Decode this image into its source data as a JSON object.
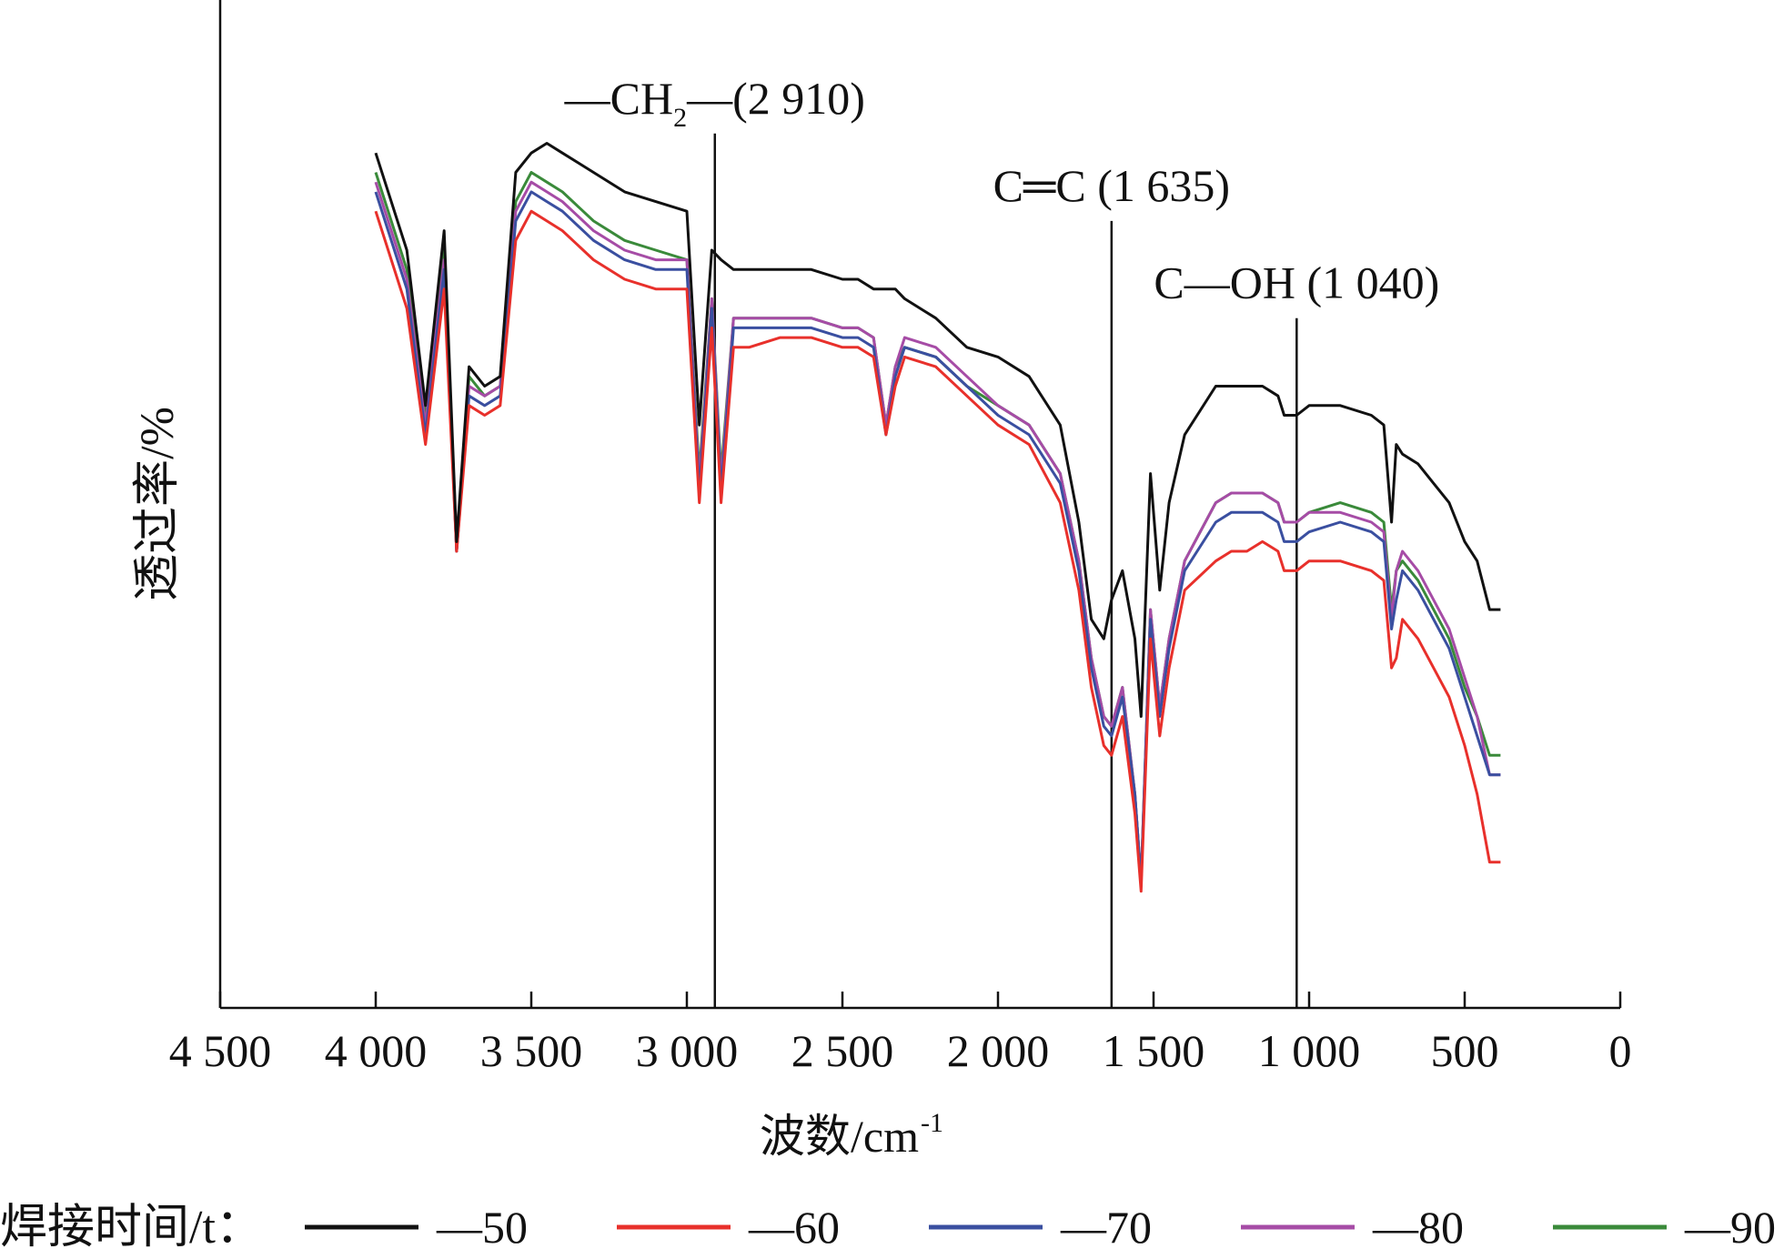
{
  "chart_data": {
    "type": "line",
    "title": "",
    "xlabel": "波数/cm",
    "xlabel_sup": "-1",
    "ylabel": "透过率/%",
    "xlim": [
      4500,
      0
    ],
    "xticks": [
      4500,
      4000,
      3500,
      3000,
      2500,
      2000,
      1500,
      1000,
      500,
      0
    ],
    "xtick_labels": [
      "4 500",
      "4 000",
      "3 500",
      "3 000",
      "2 500",
      "2 000",
      "1 500",
      "1 000",
      "500",
      "0"
    ],
    "ylim": [
      0,
      100
    ],
    "grid": false,
    "legend_title": "焊接时间/t：",
    "legend_position": "bottom",
    "annotations": [
      {
        "pre": "—CH",
        "sub": "2",
        "post": "—(2 910)",
        "x": 2910,
        "y_top": 90
      },
      {
        "pre": "C═C (1 635)",
        "sub": "",
        "post": "",
        "x": 1635,
        "y_top": 81
      },
      {
        "pre": "C—OH (1 040)",
        "sub": "",
        "post": "",
        "x": 1040,
        "y_top": 71
      }
    ],
    "x": [
      4000,
      3900,
      3840,
      3780,
      3740,
      3700,
      3650,
      3600,
      3550,
      3500,
      3450,
      3400,
      3300,
      3200,
      3100,
      3000,
      2960,
      2920,
      2890,
      2850,
      2800,
      2700,
      2600,
      2500,
      2450,
      2400,
      2360,
      2330,
      2300,
      2200,
      2100,
      2000,
      1900,
      1800,
      1740,
      1700,
      1660,
      1635,
      1600,
      1560,
      1540,
      1510,
      1480,
      1450,
      1400,
      1300,
      1250,
      1200,
      1150,
      1100,
      1080,
      1040,
      1000,
      900,
      800,
      760,
      735,
      720,
      700,
      650,
      600,
      550,
      500,
      460,
      420
    ],
    "series": [
      {
        "name": "—50",
        "color": "#111111",
        "values": [
          88,
          78,
          62,
          80,
          48,
          66,
          64,
          65,
          86,
          88,
          89,
          88,
          86,
          84,
          83,
          82,
          60,
          78,
          77,
          76,
          76,
          76,
          76,
          75,
          75,
          74,
          74,
          74,
          73,
          71,
          68,
          67,
          65,
          60,
          50,
          40,
          38,
          42,
          45,
          38,
          30,
          55,
          43,
          52,
          59,
          64,
          64,
          64,
          64,
          63,
          61,
          61,
          62,
          62,
          61,
          60,
          50,
          58,
          57,
          56,
          54,
          52,
          48,
          46,
          41
        ]
      },
      {
        "name": "—60",
        "color": "#e8302b",
        "values": [
          82,
          72,
          58,
          74,
          47,
          62,
          61,
          62,
          79,
          82,
          81,
          80,
          77,
          75,
          74,
          74,
          52,
          70,
          52,
          68,
          68,
          69,
          69,
          68,
          68,
          67,
          59,
          64,
          67,
          66,
          63,
          60,
          58,
          52,
          43,
          33,
          27,
          26,
          30,
          20,
          12,
          38,
          28,
          35,
          43,
          46,
          47,
          47,
          48,
          47,
          45,
          45,
          46,
          46,
          45,
          44,
          35,
          36,
          40,
          38,
          35,
          32,
          27,
          22,
          15
        ]
      },
      {
        "name": "—70",
        "color": "#3a4fa0",
        "values": [
          84,
          74,
          59,
          76,
          47,
          63,
          62,
          63,
          81,
          84,
          83,
          82,
          79,
          77,
          76,
          76,
          53,
          72,
          53,
          70,
          70,
          70,
          70,
          69,
          69,
          68,
          59,
          65,
          68,
          67,
          64,
          61,
          59,
          54,
          45,
          35,
          29,
          28,
          32,
          22,
          13,
          40,
          30,
          37,
          45,
          50,
          51,
          51,
          51,
          50,
          48,
          48,
          49,
          50,
          49,
          48,
          39,
          42,
          45,
          43,
          40,
          37,
          32,
          28,
          24
        ]
      },
      {
        "name": "—80",
        "color": "#a64ca6",
        "values": [
          85,
          75,
          60,
          77,
          47,
          64,
          63,
          64,
          82,
          85,
          84,
          83,
          80,
          78,
          77,
          77,
          54,
          73,
          54,
          71,
          71,
          71,
          71,
          70,
          70,
          69,
          60,
          66,
          69,
          68,
          65,
          62,
          60,
          55,
          46,
          36,
          30,
          29,
          33,
          22,
          13,
          41,
          31,
          38,
          46,
          52,
          53,
          53,
          53,
          52,
          50,
          50,
          51,
          51,
          50,
          49,
          40,
          45,
          47,
          45,
          42,
          39,
          34,
          30,
          24
        ]
      },
      {
        "name": "—90",
        "color": "#3a8a3a",
        "values": [
          86,
          76,
          61,
          78,
          47,
          65,
          63,
          64,
          83,
          86,
          85,
          84,
          81,
          79,
          78,
          77,
          55,
          73,
          55,
          71,
          71,
          71,
          71,
          70,
          70,
          69,
          60,
          66,
          68,
          67,
          64,
          62,
          60,
          55,
          46,
          36,
          30,
          29,
          33,
          22,
          13,
          41,
          31,
          38,
          46,
          52,
          53,
          53,
          53,
          52,
          50,
          50,
          51,
          52,
          51,
          50,
          41,
          45,
          46,
          44,
          41,
          38,
          33,
          30,
          26
        ]
      }
    ]
  }
}
